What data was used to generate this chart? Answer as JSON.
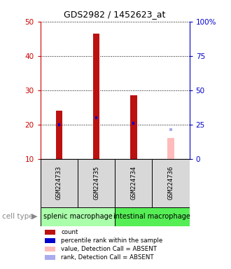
{
  "title": "GDS2982 / 1452623_at",
  "samples": [
    "GSM224733",
    "GSM224735",
    "GSM224734",
    "GSM224736"
  ],
  "count_values": [
    24.0,
    46.5,
    28.5,
    16.0
  ],
  "rank_values": [
    25.0,
    30.0,
    26.0,
    21.0
  ],
  "detection_call": [
    "P",
    "P",
    "P",
    "A"
  ],
  "cell_types": [
    {
      "label": "splenic macrophage",
      "span": [
        0,
        2
      ],
      "color": "#aaffaa"
    },
    {
      "label": "intestinal macrophage",
      "span": [
        2,
        4
      ],
      "color": "#55ee55"
    }
  ],
  "ylim_left": [
    10,
    50
  ],
  "ylim_right": [
    0,
    100
  ],
  "yticks_left": [
    10,
    20,
    30,
    40,
    50
  ],
  "yticks_right": [
    0,
    25,
    50,
    75,
    100
  ],
  "color_count_present": "#bb1111",
  "color_rank_present": "#0000cc",
  "color_count_absent": "#ffbbbb",
  "color_rank_absent": "#aaaaee",
  "bg_color": "#d8d8d8",
  "left_tick_color": "#cc0000",
  "right_tick_color": "#0000cc",
  "count_bar_width": 0.18,
  "rank_bar_width": 0.06
}
